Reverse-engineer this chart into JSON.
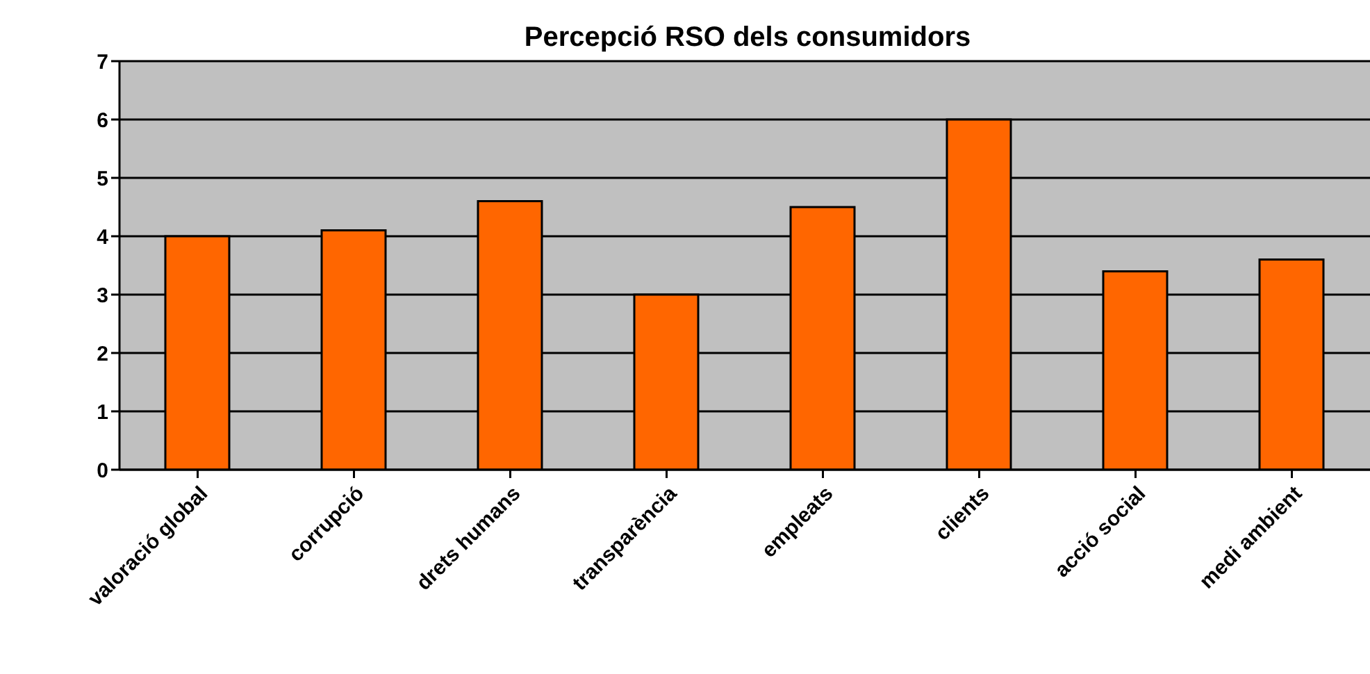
{
  "chart_data": {
    "type": "bar",
    "title": "Percepció RSO dels consumidors",
    "categories": [
      "valoració global",
      "corrupció",
      "drets humans",
      "transparència",
      "empleats",
      "clients",
      "acció social",
      "medi ambient"
    ],
    "values": [
      4.0,
      4.1,
      4.6,
      3.0,
      4.5,
      6.0,
      3.4,
      3.6
    ],
    "color": "#ff6600",
    "ylim": [
      0,
      7
    ],
    "yticks": [
      0,
      1,
      2,
      3,
      4,
      5,
      6,
      7
    ],
    "grid": "y"
  }
}
